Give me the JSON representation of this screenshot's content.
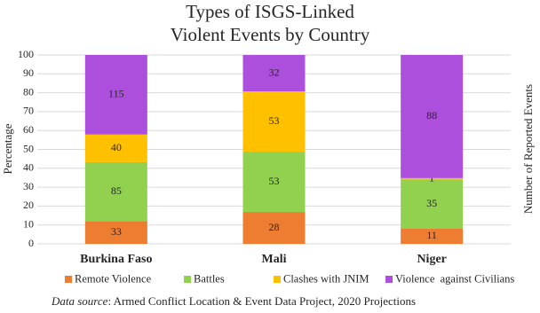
{
  "chart_data": {
    "type": "bar",
    "stack": "percent",
    "title": [
      "Types of ISGS-Linked",
      "Violent Events by Country"
    ],
    "y_label": "Percentage",
    "y2_label": "Number of Reported Events",
    "categories": [
      "Burkina Faso",
      "Mali",
      "Niger"
    ],
    "series": [
      {
        "name": "Remote Violence",
        "color": "#ed7d31",
        "values": [
          33,
          28,
          11
        ]
      },
      {
        "name": "Battles",
        "color": "#92d050",
        "values": [
          85,
          53,
          35
        ]
      },
      {
        "name": "Clashes with JNIM",
        "color": "#ffc000",
        "values": [
          40,
          53,
          1
        ]
      },
      {
        "name": "Violence  against Civilians",
        "color": "#ac4fdc",
        "values": [
          115,
          32,
          88
        ]
      }
    ],
    "ylim": [
      0,
      100
    ],
    "yticks": [
      0,
      10,
      20,
      30,
      40,
      50,
      60,
      70,
      80,
      90,
      100
    ],
    "grid": true,
    "source": {
      "label": "Data source",
      "text": ": Armed Conflict Location & Event Data Project, 2020 Projections"
    }
  }
}
